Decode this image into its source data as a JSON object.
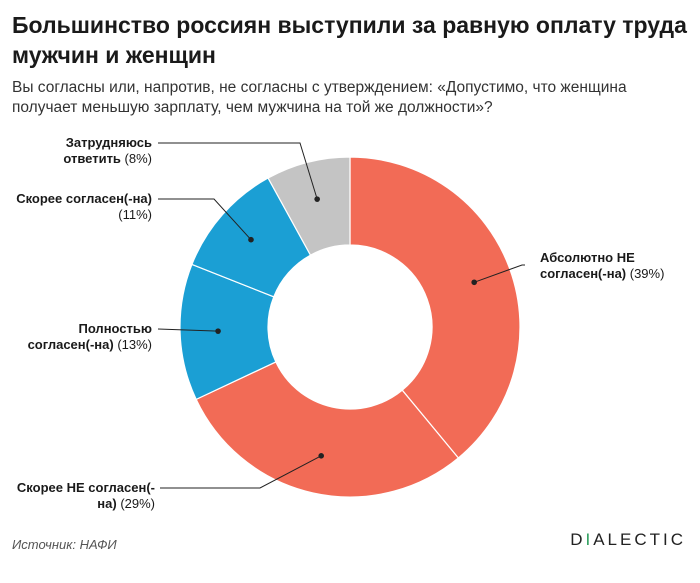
{
  "title": "Большинство россиян выступили за равную оплату труда мужчин и женщин",
  "subtitle": "Вы согласны или, напротив, не согласны с утверждением: «Допустимо, что женщина получает меньшую зарплату, чем мужчина на той же должности»?",
  "source": "Источник: НАФИ",
  "logo": {
    "prefix": "D",
    "dash": "I",
    "rest": "ALECTIC",
    "accent_color": "#2a9d5b"
  },
  "chart_data": {
    "type": "pie",
    "donut": true,
    "title": "Большинство россиян выступили за равную оплату труда мужчин и женщин",
    "subtitle": "Вы согласны или, напротив, не согласны с утверждением: «Допустимо, что женщина получает меньшую зарплату, чем мужчина на той же должности»?",
    "order": "clockwise from top",
    "slices": [
      {
        "label": "Абсолютно НЕ согласен(-на)",
        "value": 39,
        "pct_text": "(39%)",
        "color": "#f26b56",
        "label_lines": [
          "Абсолютно НЕ",
          "согласен(-на)"
        ]
      },
      {
        "label": "Скорее НЕ согласен(-на)",
        "value": 29,
        "pct_text": "(29%)",
        "color": "#f26b56",
        "label_lines": [
          "Скорее НЕ согласен(-",
          "на)"
        ]
      },
      {
        "label": "Полностью согласен(-на)",
        "value": 13,
        "pct_text": "(13%)",
        "color": "#1b9fd4",
        "label_lines": [
          "Полностью",
          "согласен(-на)"
        ]
      },
      {
        "label": "Скорее согласен(-на)",
        "value": 11,
        "pct_text": "(11%)",
        "color": "#1b9fd4",
        "label_lines": [
          "Скорее согласен(-на)",
          ""
        ]
      },
      {
        "label": "Затрудняюсь ответить",
        "value": 8,
        "pct_text": "(8%)",
        "color": "#c4c4c4",
        "label_lines": [
          "Затрудняюсь",
          "ответить"
        ]
      }
    ]
  }
}
